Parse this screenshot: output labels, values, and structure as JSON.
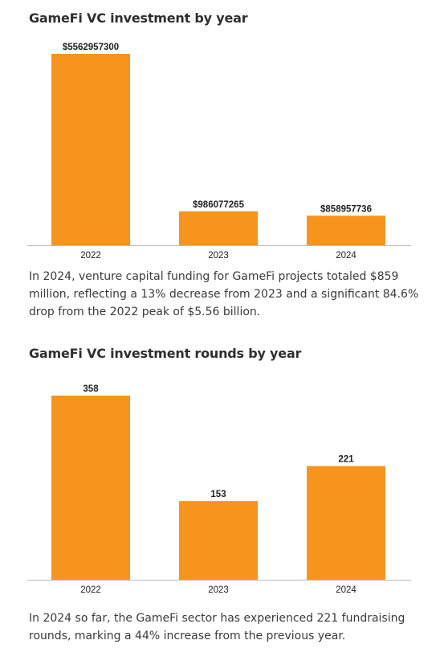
{
  "chart_data": [
    {
      "type": "bar",
      "title": "GameFi  VC investment by year",
      "categories": [
        "2022",
        "2023",
        "2024"
      ],
      "values": [
        5562957300,
        986077265,
        858957736
      ],
      "value_labels": [
        "$5562957300",
        "$986077265",
        "$858957736"
      ],
      "ylim": [
        0,
        5562957300
      ],
      "grid": false,
      "color": "#f7941d",
      "description": "In 2024, venture capital funding for GameFi projects totaled $859 million, reflecting a 13% decrease from 2023 and a significant 84.6% drop from the 2022 peak of $5.56 billion."
    },
    {
      "type": "bar",
      "title": "GameFi  VC investment rounds by year",
      "categories": [
        "2022",
        "2023",
        "2024"
      ],
      "values": [
        358,
        153,
        221
      ],
      "value_labels": [
        "358",
        "153",
        "221"
      ],
      "ylim": [
        0,
        358
      ],
      "grid": false,
      "color": "#f7941d",
      "description": "In 2024 so far, the GameFi sector has experienced 221 fundraising rounds, marking a 44% increase from the previous year."
    }
  ]
}
